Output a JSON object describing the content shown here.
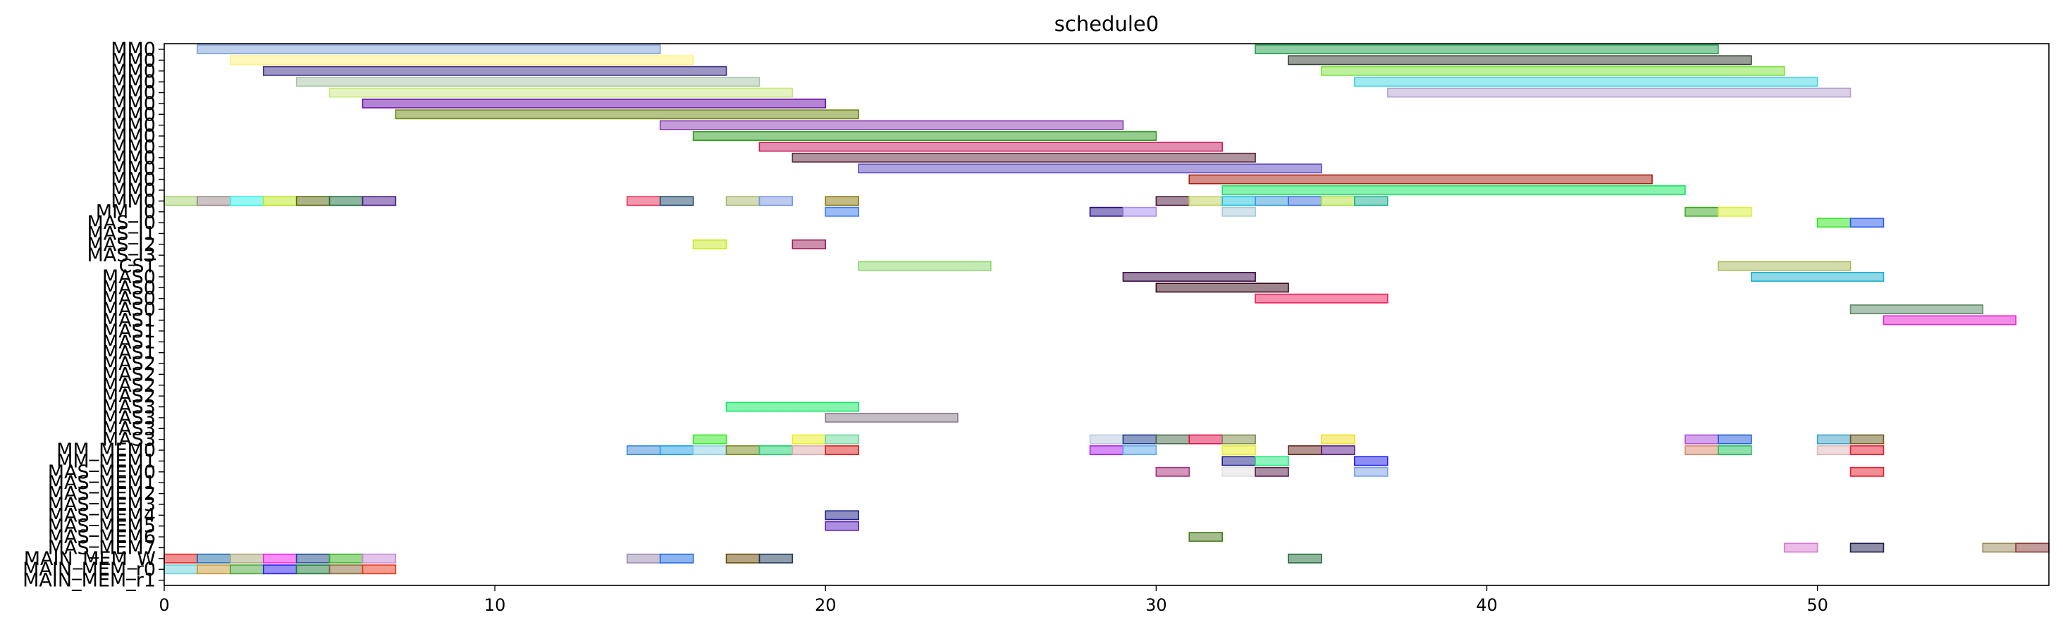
{
  "chart_data": {
    "type": "gantt",
    "title": "schedule0",
    "xlabel": "",
    "ylabel": "",
    "xlim": [
      0,
      57
    ],
    "x_ticks": [
      0,
      10,
      20,
      30,
      40,
      50
    ],
    "x_tick_labels": [
      "0",
      "10",
      "20",
      "30",
      "40",
      "50"
    ],
    "y_labels": [
      "MM0",
      "MM0",
      "MM0",
      "MM0",
      "MM0",
      "MM0",
      "MM0",
      "MM0",
      "MM0",
      "MM0",
      "MM0",
      "MM0",
      "MM0",
      "MM0",
      "MM0",
      "MM_I0",
      "MAS_I0",
      "MAS_I1",
      "MAS_I2",
      "MAS_I3",
      "CST",
      "MAS0",
      "MAS0",
      "MAS0",
      "MAS0",
      "MAS1",
      "MAS1",
      "MAS1",
      "MAS1",
      "MAS2",
      "MAS2",
      "MAS2",
      "MAS2",
      "MAS3",
      "MAS3",
      "MAS3",
      "MAS3",
      "MM_MEM0",
      "MM_MEM1",
      "MAS_MEM0",
      "MAS_MEM1",
      "MAS_MEM2",
      "MAS_MEM3",
      "MAS_MEM4",
      "MAS_MEM5",
      "MAS_MEM6",
      "MAS_MEM7",
      "MAIN_MEM_W",
      "MAIN_MEM_r0",
      "MAIN_MEM_r1"
    ],
    "tasks": [
      {
        "row": 0,
        "start": 1,
        "end": 15,
        "color": "#7b9fd6"
      },
      {
        "row": 0,
        "start": 33,
        "end": 47,
        "color": "#1f9e4a"
      },
      {
        "row": 1,
        "start": 2,
        "end": 16,
        "color": "#fff27a"
      },
      {
        "row": 1,
        "start": 34,
        "end": 48,
        "color": "#304030"
      },
      {
        "row": 2,
        "start": 3,
        "end": 17,
        "color": "#3a2e88"
      },
      {
        "row": 2,
        "start": 35,
        "end": 49,
        "color": "#7be23a"
      },
      {
        "row": 3,
        "start": 4,
        "end": 18,
        "color": "#a8c4a8"
      },
      {
        "row": 3,
        "start": 36,
        "end": 50,
        "color": "#3fd8e0"
      },
      {
        "row": 4,
        "start": 5,
        "end": 19,
        "color": "#c9e880"
      },
      {
        "row": 4,
        "start": 37,
        "end": 51,
        "color": "#b6a2d0"
      },
      {
        "row": 5,
        "start": 6,
        "end": 20,
        "color": "#6a0aa8"
      },
      {
        "row": 6,
        "start": 7,
        "end": 21,
        "color": "#6e8a12"
      },
      {
        "row": 7,
        "start": 15,
        "end": 29,
        "color": "#8a3ab0"
      },
      {
        "row": 8,
        "start": 16,
        "end": 30,
        "color": "#2c9e1e"
      },
      {
        "row": 9,
        "start": 18,
        "end": 32,
        "color": "#c81e5e"
      },
      {
        "row": 10,
        "start": 19,
        "end": 33,
        "color": "#5e2a3e"
      },
      {
        "row": 11,
        "start": 21,
        "end": 35,
        "color": "#5a48c0"
      },
      {
        "row": 12,
        "start": 31,
        "end": 45,
        "color": "#a81e10"
      },
      {
        "row": 13,
        "start": 32,
        "end": 46,
        "color": "#10e860"
      },
      {
        "row": 14,
        "start": 0,
        "end": 1,
        "color": "#a8d070"
      },
      {
        "row": 14,
        "start": 1,
        "end": 2,
        "color": "#9a8a8a"
      },
      {
        "row": 14,
        "start": 2,
        "end": 3,
        "color": "#30f0e8"
      },
      {
        "row": 14,
        "start": 3,
        "end": 4,
        "color": "#bae81e"
      },
      {
        "row": 14,
        "start": 4,
        "end": 5,
        "color": "#5a6a10"
      },
      {
        "row": 14,
        "start": 5,
        "end": 6,
        "color": "#1e7040"
      },
      {
        "row": 14,
        "start": 6,
        "end": 7,
        "color": "#4a1a8a"
      },
      {
        "row": 14,
        "start": 14,
        "end": 15,
        "color": "#e8305a"
      },
      {
        "row": 14,
        "start": 15,
        "end": 16,
        "color": "#1e4a6a"
      },
      {
        "row": 14,
        "start": 17,
        "end": 18,
        "color": "#a8b870"
      },
      {
        "row": 14,
        "start": 18,
        "end": 19,
        "color": "#7a96e0"
      },
      {
        "row": 14,
        "start": 20,
        "end": 21,
        "color": "#8a7a0a"
      },
      {
        "row": 14,
        "start": 30,
        "end": 31,
        "color": "#4a1a3a"
      },
      {
        "row": 14,
        "start": 31,
        "end": 32,
        "color": "#c0d05a"
      },
      {
        "row": 14,
        "start": 32,
        "end": 33,
        "color": "#1ec0e0"
      },
      {
        "row": 14,
        "start": 33,
        "end": 34,
        "color": "#3a9ad8"
      },
      {
        "row": 14,
        "start": 34,
        "end": 35,
        "color": "#3a72d8"
      },
      {
        "row": 14,
        "start": 35,
        "end": 36,
        "color": "#b0e040"
      },
      {
        "row": 14,
        "start": 36,
        "end": 37,
        "color": "#1ab090"
      },
      {
        "row": 15,
        "start": 20,
        "end": 21,
        "color": "#3a7af0"
      },
      {
        "row": 15,
        "start": 28,
        "end": 29,
        "color": "#2a0e8a"
      },
      {
        "row": 15,
        "start": 29,
        "end": 30,
        "color": "#a88af0"
      },
      {
        "row": 15,
        "start": 32,
        "end": 33,
        "color": "#a8c8d8"
      },
      {
        "row": 15,
        "start": 46,
        "end": 47,
        "color": "#3aa81e"
      },
      {
        "row": 15,
        "start": 47,
        "end": 48,
        "color": "#d8f030"
      },
      {
        "row": 16,
        "start": 50,
        "end": 51,
        "color": "#30e81e"
      },
      {
        "row": 16,
        "start": 51,
        "end": 52,
        "color": "#2a5af0"
      },
      {
        "row": 18,
        "start": 16,
        "end": 17,
        "color": "#c8e81e"
      },
      {
        "row": 18,
        "start": 19,
        "end": 20,
        "color": "#9a1e58"
      },
      {
        "row": 20,
        "start": 21,
        "end": 25,
        "color": "#8ad86a"
      },
      {
        "row": 20,
        "start": 47,
        "end": 51,
        "color": "#a8ba5a"
      },
      {
        "row": 21,
        "start": 29,
        "end": 33,
        "color": "#3a0e4a"
      },
      {
        "row": 21,
        "start": 48,
        "end": 52,
        "color": "#1eb0d0"
      },
      {
        "row": 22,
        "start": 30,
        "end": 34,
        "color": "#3a0a1a"
      },
      {
        "row": 23,
        "start": 33,
        "end": 37,
        "color": "#f01e5a"
      },
      {
        "row": 24,
        "start": 51,
        "end": 55,
        "color": "#5a8a6a"
      },
      {
        "row": 25,
        "start": 52,
        "end": 56,
        "color": "#e81ed0"
      },
      {
        "row": 33,
        "start": 17,
        "end": 21,
        "color": "#10e860"
      },
      {
        "row": 34,
        "start": 20,
        "end": 24,
        "color": "#8a7a8a"
      },
      {
        "row": 36,
        "start": 16,
        "end": 17,
        "color": "#30e81e"
      },
      {
        "row": 36,
        "start": 19,
        "end": 20,
        "color": "#e8f01e"
      },
      {
        "row": 36,
        "start": 20,
        "end": 21,
        "color": "#6ad89a"
      },
      {
        "row": 36,
        "start": 28,
        "end": 29,
        "color": "#b8c8e0"
      },
      {
        "row": 36,
        "start": 29,
        "end": 30,
        "color": "#1a3a8a"
      },
      {
        "row": 36,
        "start": 30,
        "end": 31,
        "color": "#4a6a4a"
      },
      {
        "row": 36,
        "start": 31,
        "end": 32,
        "color": "#e0104a"
      },
      {
        "row": 36,
        "start": 32,
        "end": 33,
        "color": "#7a8a4a"
      },
      {
        "row": 36,
        "start": 35,
        "end": 36,
        "color": "#f0e01e"
      },
      {
        "row": 36,
        "start": 46,
        "end": 47,
        "color": "#a84ad8"
      },
      {
        "row": 36,
        "start": 47,
        "end": 48,
        "color": "#1e5ad8"
      },
      {
        "row": 36,
        "start": 50,
        "end": 51,
        "color": "#3aa0c8"
      },
      {
        "row": 36,
        "start": 51,
        "end": 52,
        "color": "#6a5a1e"
      },
      {
        "row": 37,
        "start": 14,
        "end": 15,
        "color": "#3a8ad8"
      },
      {
        "row": 37,
        "start": 15,
        "end": 16,
        "color": "#1ea0e8"
      },
      {
        "row": 37,
        "start": 16,
        "end": 17,
        "color": "#8ad0e8"
      },
      {
        "row": 37,
        "start": 17,
        "end": 18,
        "color": "#7a8a1e"
      },
      {
        "row": 37,
        "start": 18,
        "end": 19,
        "color": "#1ed070"
      },
      {
        "row": 37,
        "start": 19,
        "end": 20,
        "color": "#e0a8a8"
      },
      {
        "row": 37,
        "start": 20,
        "end": 21,
        "color": "#e01e1e"
      },
      {
        "row": 37,
        "start": 28,
        "end": 29,
        "color": "#b01ef0"
      },
      {
        "row": 37,
        "start": 29,
        "end": 30,
        "color": "#5aa8f0"
      },
      {
        "row": 37,
        "start": 32,
        "end": 33,
        "color": "#e8f01e"
      },
      {
        "row": 37,
        "start": 34,
        "end": 35,
        "color": "#6a2a1e"
      },
      {
        "row": 37,
        "start": 35,
        "end": 36,
        "color": "#5a1e8a"
      },
      {
        "row": 37,
        "start": 46,
        "end": 47,
        "color": "#d88a6a"
      },
      {
        "row": 37,
        "start": 47,
        "end": 48,
        "color": "#1ec05a"
      },
      {
        "row": 37,
        "start": 50,
        "end": 51,
        "color": "#e0b8b8"
      },
      {
        "row": 37,
        "start": 51,
        "end": 52,
        "color": "#e81e30"
      },
      {
        "row": 38,
        "start": 32,
        "end": 33,
        "color": "#1e1e8a"
      },
      {
        "row": 38,
        "start": 33,
        "end": 34,
        "color": "#1ee87a"
      },
      {
        "row": 38,
        "start": 36,
        "end": 37,
        "color": "#1e1ee8"
      },
      {
        "row": 39,
        "start": 30,
        "end": 31,
        "color": "#a8307a"
      },
      {
        "row": 39,
        "start": 32,
        "end": 33,
        "color": "#e0e0e0"
      },
      {
        "row": 39,
        "start": 33,
        "end": 34,
        "color": "#5a1e4a"
      },
      {
        "row": 39,
        "start": 36,
        "end": 37,
        "color": "#7aa0e8"
      },
      {
        "row": 39,
        "start": 51,
        "end": 52,
        "color": "#e81e30"
      },
      {
        "row": 43,
        "start": 20,
        "end": 21,
        "color": "#1e1e8a"
      },
      {
        "row": 44,
        "start": 20,
        "end": 21,
        "color": "#5a1ec0"
      },
      {
        "row": 45,
        "start": 31,
        "end": 32,
        "color": "#4a7a1e"
      },
      {
        "row": 46,
        "start": 49,
        "end": 50,
        "color": "#d87ad0"
      },
      {
        "row": 46,
        "start": 51,
        "end": 52,
        "color": "#1e1e4a"
      },
      {
        "row": 46,
        "start": 55,
        "end": 56,
        "color": "#9a8a5a"
      },
      {
        "row": 46,
        "start": 56,
        "end": 57,
        "color": "#8a3a3a"
      },
      {
        "row": 47,
        "start": 0,
        "end": 1,
        "color": "#e01e1e"
      },
      {
        "row": 47,
        "start": 1,
        "end": 2,
        "color": "#1e6aa8"
      },
      {
        "row": 47,
        "start": 2,
        "end": 3,
        "color": "#a8a87a"
      },
      {
        "row": 47,
        "start": 3,
        "end": 4,
        "color": "#f01ef0"
      },
      {
        "row": 47,
        "start": 4,
        "end": 5,
        "color": "#1e4a8a"
      },
      {
        "row": 47,
        "start": 5,
        "end": 6,
        "color": "#3ab01e"
      },
      {
        "row": 47,
        "start": 6,
        "end": 7,
        "color": "#c88ad8"
      },
      {
        "row": 47,
        "start": 14,
        "end": 15,
        "color": "#9a8ab0"
      },
      {
        "row": 47,
        "start": 15,
        "end": 16,
        "color": "#1e6ae0"
      },
      {
        "row": 47,
        "start": 17,
        "end": 18,
        "color": "#6a4a0a"
      },
      {
        "row": 47,
        "start": 18,
        "end": 19,
        "color": "#1e3a5a"
      },
      {
        "row": 47,
        "start": 34,
        "end": 35,
        "color": "#1e6a3a"
      },
      {
        "row": 48,
        "start": 0,
        "end": 1,
        "color": "#6ad0d8"
      },
      {
        "row": 48,
        "start": 1,
        "end": 2,
        "color": "#c89a3a"
      },
      {
        "row": 48,
        "start": 2,
        "end": 3,
        "color": "#4aa83a"
      },
      {
        "row": 48,
        "start": 3,
        "end": 4,
        "color": "#2a1ef0"
      },
      {
        "row": 48,
        "start": 4,
        "end": 5,
        "color": "#1e7a3a"
      },
      {
        "row": 48,
        "start": 5,
        "end": 6,
        "color": "#8a6a3a"
      },
      {
        "row": 48,
        "start": 6,
        "end": 7,
        "color": "#e83a1e"
      }
    ]
  }
}
